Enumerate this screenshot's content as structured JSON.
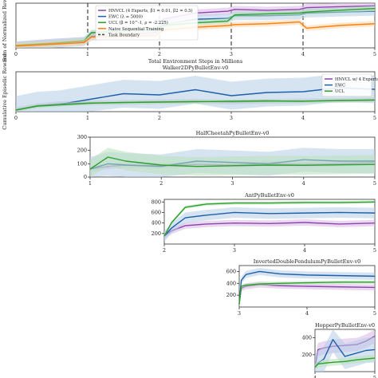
{
  "colors": {
    "hnvcl": "#8e44ad",
    "ewc": "#1f5fa8",
    "ucl": "#2ca02c",
    "naive": "#ff7f0e",
    "boundary": "#444444",
    "band_hnvcl": "#d9b8e6",
    "band_ewc": "#b5cde8",
    "band_ucl": "#b9e0b9",
    "band_naive": "#fbd3a8"
  },
  "chart_data": [
    {
      "type": "line",
      "ylabel": "Sum of Normalized Reward",
      "xlabel": "Total Environment Steps in Millions",
      "xlim": [
        0,
        5
      ],
      "ylim": [
        0,
        5
      ],
      "xticks": [
        "0",
        "1",
        "2",
        "3",
        "4",
        "5"
      ],
      "task_boundaries": [
        1,
        2,
        3,
        4
      ],
      "legend": "top-left",
      "legend_entries": [
        {
          "key": "hnvcl",
          "label": "HNVCL (4 Experts, β1 = 0.01, β2 = 0.5)"
        },
        {
          "key": "ewc",
          "label": "EWC (λ = 5000)"
        },
        {
          "key": "ucl",
          "label": "UCL (β = 10^-1, ρ = -2.225)"
        },
        {
          "key": "naive",
          "label": "Naive Sequential Training"
        },
        {
          "key": "boundary",
          "label": "Task Boundary"
        }
      ],
      "series": [
        {
          "key": "hnvcl",
          "x": [
            0,
            0.5,
            0.95,
            1.05,
            1.5,
            1.95,
            2.05,
            2.5,
            2.95,
            3.05,
            3.5,
            3.95,
            4.05,
            4.5,
            5
          ],
          "y": [
            0.3,
            0.6,
            0.8,
            1.6,
            1.7,
            1.9,
            3.2,
            3.9,
            4.1,
            4.3,
            4.2,
            4.3,
            4.5,
            4.6,
            4.7
          ],
          "band": 0.4
        },
        {
          "key": "ewc",
          "x": [
            0,
            0.5,
            0.95,
            1.05,
            1.5,
            1.95,
            2.05,
            2.5,
            2.95,
            3.05,
            3.5,
            3.95,
            4.05,
            4.5,
            5
          ],
          "y": [
            0.2,
            0.5,
            0.7,
            1.3,
            1.5,
            1.7,
            2.6,
            3.2,
            3.3,
            3.6,
            3.6,
            3.7,
            3.9,
            4.0,
            4.1
          ],
          "band": 0.5
        },
        {
          "key": "ucl",
          "x": [
            0,
            0.5,
            0.95,
            1.05,
            1.5,
            1.95,
            2.05,
            2.5,
            2.95,
            3.05,
            3.5,
            3.95,
            4.05,
            4.5,
            5
          ],
          "y": [
            0.3,
            0.5,
            0.8,
            1.7,
            1.9,
            2.1,
            2.5,
            2.8,
            3.0,
            3.7,
            3.8,
            3.9,
            4.0,
            4.2,
            4.4
          ],
          "band": 0.3
        },
        {
          "key": "naive",
          "x": [
            0,
            0.5,
            0.95,
            1.05,
            1.5,
            1.95,
            2.05,
            2.5,
            2.95,
            3.05,
            3.5,
            3.95,
            4.05,
            4.5,
            5
          ],
          "y": [
            0.2,
            0.4,
            0.6,
            1.2,
            1.3,
            1.4,
            2.0,
            2.3,
            2.5,
            2.6,
            2.7,
            2.9,
            2.2,
            2.5,
            2.7
          ],
          "band": 0.3
        }
      ]
    },
    {
      "type": "line",
      "title": "Walker2DPyBulletEnv-v0",
      "ylabel": "Cumulative Episodic Reward",
      "xlim": [
        0,
        5
      ],
      "ylim": [
        0,
        1000
      ],
      "xticks": [
        "0",
        "1",
        "2",
        "3",
        "4",
        "5"
      ],
      "legend": "top-right",
      "legend_entries": [
        {
          "key": "hnvcl",
          "label": "HNVCL w/ 4 Experts"
        },
        {
          "key": "ewc",
          "label": "EWC"
        },
        {
          "key": "ucl",
          "label": "UCL"
        }
      ],
      "series": [
        {
          "key": "hnvcl",
          "x": [
            0,
            0.3,
            0.6,
            1,
            1.5,
            2,
            2.5,
            3,
            3.5,
            4,
            4.5,
            5
          ],
          "y": [
            50,
            150,
            200,
            220,
            230,
            250,
            260,
            240,
            260,
            270,
            280,
            300
          ],
          "band": 60
        },
        {
          "key": "ewc",
          "x": [
            0,
            0.3,
            0.6,
            1,
            1.5,
            2,
            2.5,
            3,
            3.5,
            4,
            4.5,
            5
          ],
          "y": [
            40,
            150,
            180,
            300,
            450,
            420,
            550,
            400,
            480,
            500,
            600,
            560
          ],
          "band": 350
        },
        {
          "key": "ucl",
          "x": [
            0,
            0.3,
            0.6,
            1,
            1.5,
            2,
            2.5,
            3,
            3.5,
            4,
            4.5,
            5
          ],
          "y": [
            40,
            140,
            170,
            210,
            230,
            240,
            250,
            260,
            270,
            260,
            280,
            290
          ],
          "band": 50
        }
      ]
    },
    {
      "type": "line",
      "title": "HalfCheetahPyBulletEnv-v0",
      "xlim": [
        1,
        5
      ],
      "ylim": [
        0,
        300
      ],
      "xticks": [
        "1",
        "2",
        "3",
        "4",
        "5"
      ],
      "yticks": [
        "0",
        "100",
        "200",
        "300"
      ],
      "series": [
        {
          "key": "hnvcl",
          "x": [
            1,
            1.25,
            1.5,
            2,
            2.5,
            3,
            3.5,
            4,
            4.5,
            5
          ],
          "y": [
            60,
            80,
            90,
            85,
            95,
            90,
            100,
            95,
            100,
            110
          ],
          "band": 20
        },
        {
          "key": "ewc",
          "x": [
            1,
            1.25,
            1.5,
            2,
            2.5,
            3,
            3.5,
            4,
            4.5,
            5
          ],
          "y": [
            60,
            100,
            90,
            80,
            120,
            110,
            100,
            130,
            120,
            120
          ],
          "band": 90
        },
        {
          "key": "ucl",
          "x": [
            1,
            1.25,
            1.5,
            2,
            2.5,
            3,
            3.5,
            4,
            4.5,
            5
          ],
          "y": [
            60,
            150,
            120,
            90,
            80,
            85,
            90,
            88,
            92,
            95
          ],
          "band": 70
        }
      ]
    },
    {
      "type": "line",
      "title": "AntPyBulletEnv-v0",
      "xlim": [
        2,
        5
      ],
      "ylim": [
        0,
        850
      ],
      "xticks": [
        "2",
        "3",
        "4",
        "5"
      ],
      "yticks": [
        "200",
        "400",
        "600",
        "800"
      ],
      "series": [
        {
          "key": "hnvcl",
          "x": [
            2,
            2.1,
            2.3,
            2.6,
            3,
            3.5,
            4,
            4.5,
            5
          ],
          "y": [
            150,
            250,
            350,
            380,
            400,
            390,
            410,
            380,
            400
          ],
          "band": 60
        },
        {
          "key": "ewc",
          "x": [
            2,
            2.1,
            2.3,
            2.6,
            3,
            3.5,
            4,
            4.5,
            5
          ],
          "y": [
            150,
            300,
            500,
            550,
            600,
            580,
            590,
            600,
            590
          ],
          "band": 100
        },
        {
          "key": "ucl",
          "x": [
            2,
            2.1,
            2.3,
            2.6,
            3,
            3.5,
            4,
            4.5,
            5
          ],
          "y": [
            150,
            400,
            700,
            760,
            780,
            780,
            790,
            790,
            800
          ],
          "band": 30
        }
      ]
    },
    {
      "type": "line",
      "title": "InvertedDoublePendulumPyBulletEnv-v0",
      "xlim": [
        3,
        5
      ],
      "ylim": [
        0,
        700
      ],
      "xticks": [
        "3",
        "4",
        "5"
      ],
      "yticks": [
        "200",
        "400",
        "600"
      ],
      "series": [
        {
          "key": "hnvcl",
          "x": [
            3,
            3.03,
            3.1,
            3.3,
            3.6,
            4,
            4.5,
            5
          ],
          "y": [
            50,
            320,
            350,
            380,
            360,
            350,
            340,
            330
          ],
          "band": 50
        },
        {
          "key": "ewc",
          "x": [
            3,
            3.03,
            3.1,
            3.3,
            3.6,
            4,
            4.5,
            5
          ],
          "y": [
            50,
            450,
            550,
            600,
            560,
            540,
            530,
            520
          ],
          "band": 60
        },
        {
          "key": "ucl",
          "x": [
            3,
            3.03,
            3.1,
            3.3,
            3.6,
            4,
            4.5,
            5
          ],
          "y": [
            50,
            350,
            370,
            390,
            400,
            410,
            420,
            420
          ],
          "band": 30
        }
      ]
    },
    {
      "type": "line",
      "title": "HopperPyBulletEnv-v0",
      "xlim": [
        4,
        5
      ],
      "ylim": [
        0,
        500
      ],
      "xticks": [
        "4",
        "5"
      ],
      "yticks": [
        "200",
        "400"
      ],
      "series": [
        {
          "key": "hnvcl",
          "x": [
            4,
            4.05,
            4.15,
            4.3,
            4.5,
            4.7,
            4.85,
            5
          ],
          "y": [
            50,
            260,
            280,
            300,
            310,
            320,
            360,
            420
          ],
          "band": 80
        },
        {
          "key": "ewc",
          "x": [
            4,
            4.05,
            4.15,
            4.3,
            4.5,
            4.7,
            4.85,
            5
          ],
          "y": [
            50,
            100,
            150,
            380,
            180,
            220,
            250,
            260
          ],
          "band": 150
        },
        {
          "key": "ucl",
          "x": [
            4,
            4.05,
            4.15,
            4.3,
            4.5,
            4.7,
            4.85,
            5
          ],
          "y": [
            50,
            90,
            100,
            110,
            120,
            140,
            150,
            160
          ],
          "band": 40
        }
      ]
    }
  ]
}
